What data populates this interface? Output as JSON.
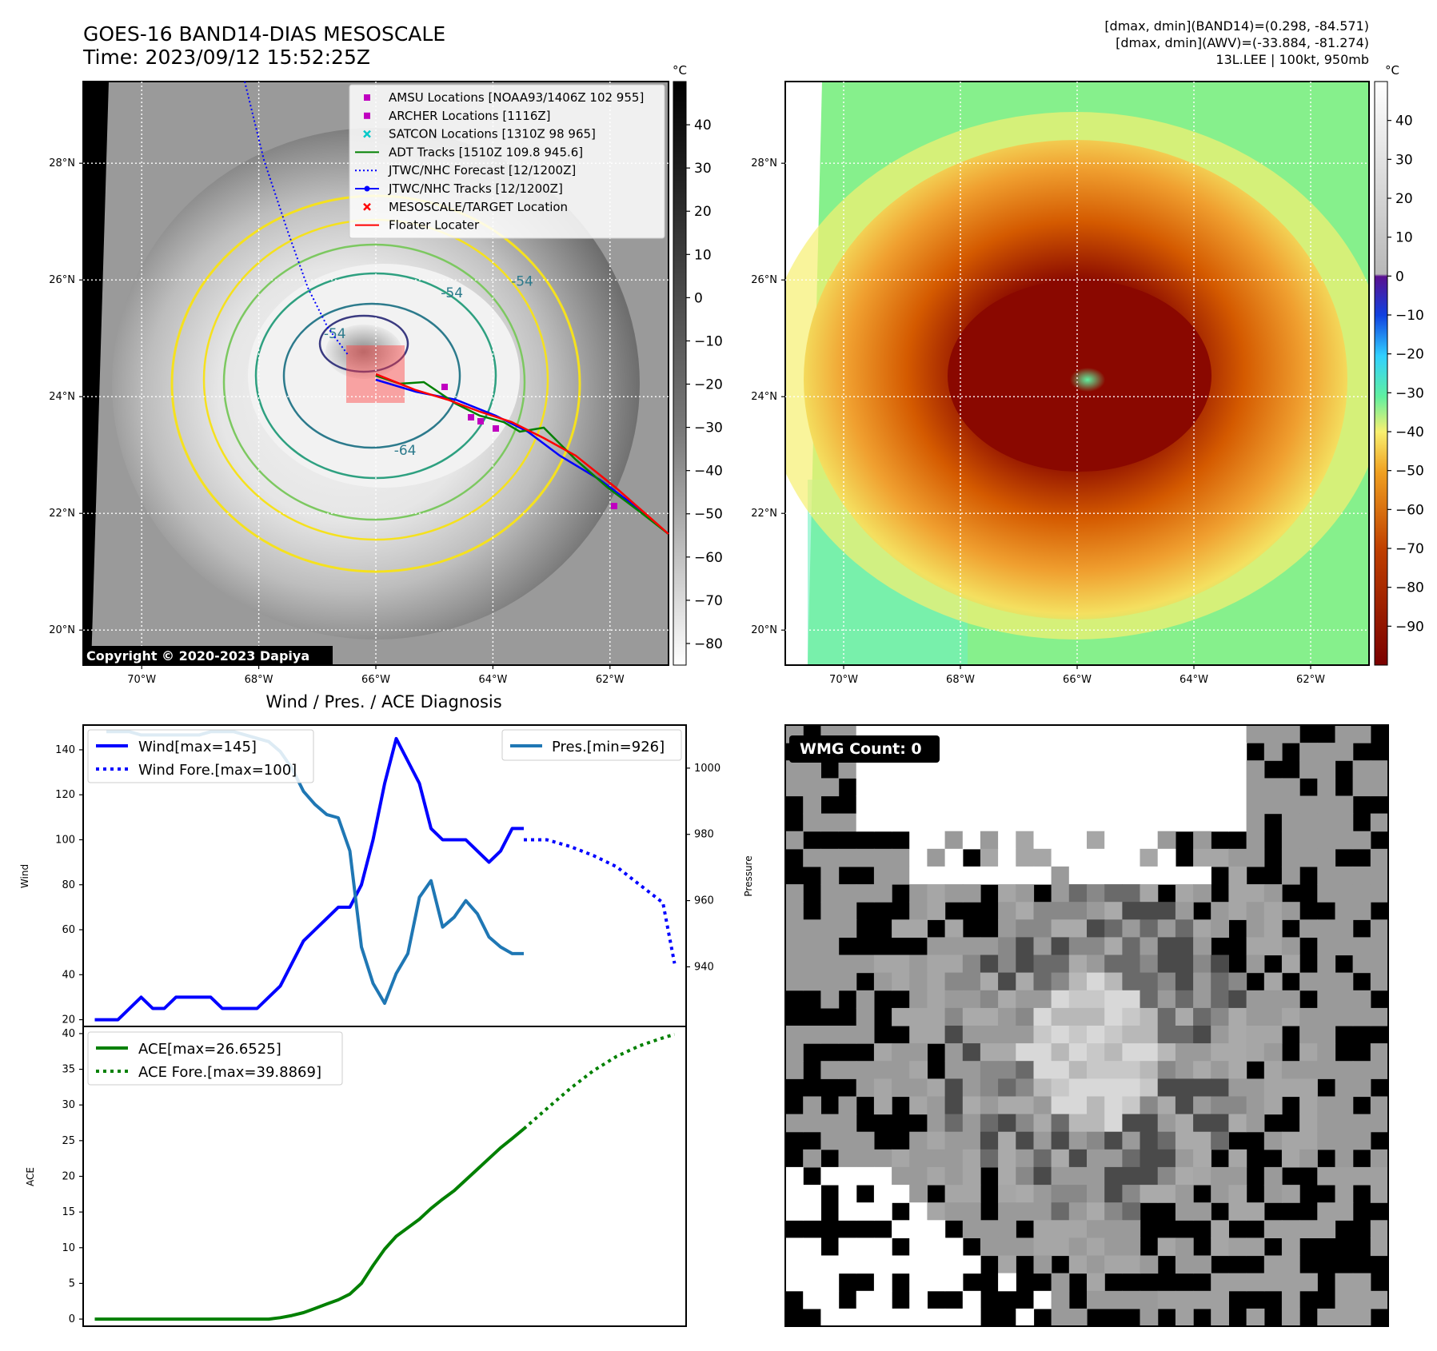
{
  "header": {
    "title_line1": "GOES-16 BAND14-DIAS MESOSCALE",
    "title_line2": "Time: 2023/09/12 15:52:25Z",
    "stats_line1": "[dmax, dmin](BAND14)=(0.298, -84.571)",
    "stats_line2": "[dmax, dmin](AWV)=(-33.884, -81.274)",
    "stats_line3": "13L.LEE | 100kt, 950mb",
    "copyright": "Copyright © 2020-2023 Dapiya"
  },
  "map": {
    "lon_ticks": [
      "70°W",
      "68°W",
      "66°W",
      "64°W",
      "62°W"
    ],
    "lat_ticks": [
      "28°N",
      "26°N",
      "24°N",
      "22°N",
      "20°N"
    ],
    "lon_values": [
      -70,
      -68,
      -66,
      -64,
      -62
    ],
    "lat_values": [
      28,
      26,
      24,
      22,
      20
    ],
    "lon_range": [
      -71,
      -61
    ],
    "lat_range": [
      19.4,
      29.4
    ],
    "grid": true,
    "contour_labels": [
      {
        "text": "-54",
        "lon": -64.7,
        "lat": 25.7
      },
      {
        "text": "-54",
        "lon": -63.5,
        "lat": 25.9
      },
      {
        "text": "-54",
        "lon": -66.7,
        "lat": 25.0
      },
      {
        "text": "-64",
        "lon": -65.5,
        "lat": 23.0
      }
    ]
  },
  "colorbar_gray": {
    "unit": "°C",
    "ticks": [
      "40",
      "30",
      "20",
      "10",
      "0",
      "−10",
      "−20",
      "−30",
      "−40",
      "−50",
      "−60",
      "−70",
      "−80"
    ],
    "values": [
      40,
      30,
      20,
      10,
      0,
      -10,
      -20,
      -30,
      -40,
      -50,
      -60,
      -70,
      -80
    ],
    "range": [
      -85,
      50
    ]
  },
  "colorbar_color": {
    "unit": "°C",
    "ticks": [
      "40",
      "30",
      "20",
      "10",
      "0",
      "−10",
      "−20",
      "−30",
      "−40",
      "−50",
      "−60",
      "−70",
      "−80",
      "−90"
    ],
    "values": [
      40,
      30,
      20,
      10,
      0,
      -10,
      -20,
      -30,
      -40,
      -50,
      -60,
      -70,
      -80,
      -90
    ],
    "range": [
      -100,
      50
    ]
  },
  "legend": [
    {
      "label": "AMSU Locations [NOAA93/1406Z 102 955]",
      "marker": "square",
      "color": "#c000c0"
    },
    {
      "label": "ARCHER Locations [1116Z]",
      "marker": "square",
      "color": "#c000c0"
    },
    {
      "label": "SATCON Locations [1310Z 98 965]",
      "marker": "x",
      "color": "#00c8c8"
    },
    {
      "label": "ADT Tracks [1510Z 109.8 945.6]",
      "marker": "line",
      "color": "#008000"
    },
    {
      "label": "JTWC/NHC Forecast [12/1200Z]",
      "marker": "dotted",
      "color": "#0000ff"
    },
    {
      "label": "JTWC/NHC Tracks [12/1200Z]",
      "marker": "line-dot",
      "color": "#0000ff"
    },
    {
      "label": "MESOSCALE/TARGET Location",
      "marker": "x",
      "color": "#ff0000"
    },
    {
      "label": "Floater Locater",
      "marker": "line",
      "color": "#ff0000"
    }
  ],
  "wmg": {
    "label": "WMG Count: 0"
  },
  "chart_data": [
    {
      "type": "line",
      "title": "Wind / Pres. / ACE Diagnosis",
      "ylabel": "Wind",
      "ylabel_right": "Pressure",
      "ylim": [
        17,
        151
      ],
      "ylim_right": [
        922,
        1013
      ],
      "xlim": [
        0,
        52
      ],
      "yticks": [
        20,
        40,
        60,
        80,
        100,
        120,
        140
      ],
      "yticks_right": [
        940,
        960,
        980,
        1000
      ],
      "legend_left": [
        "Wind[max=145]",
        "Wind Fore.[max=100]"
      ],
      "legend_right": [
        "Pres.[min=926]"
      ],
      "series": [
        {
          "name": "Wind[max=145]",
          "color": "#0000ff",
          "style": "solid",
          "x": [
            1,
            2,
            3,
            4,
            5,
            6,
            7,
            8,
            9,
            10,
            11,
            12,
            13,
            14,
            15,
            16,
            17,
            18,
            19,
            20,
            21,
            22,
            23,
            24,
            25,
            26,
            27,
            28,
            29,
            30,
            31,
            32,
            33,
            34,
            35,
            36,
            37,
            38
          ],
          "values": [
            20,
            20,
            20,
            25,
            30,
            25,
            25,
            30,
            30,
            30,
            30,
            25,
            25,
            25,
            25,
            30,
            35,
            45,
            55,
            60,
            65,
            70,
            70,
            80,
            100,
            125,
            145,
            135,
            125,
            105,
            100,
            100,
            100,
            95,
            90,
            95,
            105,
            105
          ]
        },
        {
          "name": "Wind Fore.[max=100]",
          "color": "#0000ff",
          "style": "dotted",
          "x": [
            38,
            40,
            42,
            44,
            46,
            48,
            50,
            51
          ],
          "values": [
            100,
            100,
            97,
            93,
            88,
            80,
            72,
            45
          ]
        },
        {
          "name": "Pres.[min=926]",
          "color": "#1f77b4",
          "style": "solid",
          "axis": "right",
          "x": [
            2,
            3,
            4,
            5,
            6,
            7,
            8,
            9,
            10,
            11,
            12,
            13,
            14,
            15,
            16,
            17,
            18,
            19,
            20,
            21,
            22,
            23,
            24,
            25,
            26,
            27,
            28,
            29,
            30,
            31,
            32,
            33,
            34,
            35,
            36,
            37,
            38
          ],
          "values": [
            1011,
            1011,
            1011,
            1010,
            1010,
            1010,
            1010,
            1010,
            1010,
            1011,
            1011,
            1011,
            1010,
            1009,
            1008,
            1005,
            1000,
            993,
            989,
            986,
            985,
            975,
            946,
            935,
            929,
            938,
            944,
            961,
            966,
            952,
            955,
            960,
            956,
            949,
            946,
            944,
            944
          ]
        }
      ]
    },
    {
      "type": "line",
      "ylabel": "ACE",
      "ylim": [
        -1,
        41
      ],
      "xlim": [
        0,
        52
      ],
      "yticks": [
        0,
        5,
        10,
        15,
        20,
        25,
        30,
        35,
        40
      ],
      "legend": [
        "ACE[max=26.6525]",
        "ACE Fore.[max=39.8869]"
      ],
      "series": [
        {
          "name": "ACE[max=26.6525]",
          "color": "#008000",
          "style": "solid",
          "x": [
            1,
            6,
            11,
            16,
            17,
            18,
            19,
            20,
            21,
            22,
            23,
            24,
            25,
            26,
            27,
            28,
            29,
            30,
            31,
            32,
            33,
            34,
            35,
            36,
            37,
            38
          ],
          "values": [
            0,
            0,
            0,
            0,
            0.2,
            0.5,
            0.9,
            1.5,
            2.1,
            2.7,
            3.5,
            5,
            7.5,
            9.8,
            11.6,
            12.8,
            14,
            15.5,
            16.8,
            18,
            19.5,
            21,
            22.5,
            24,
            25.3,
            26.65
          ]
        },
        {
          "name": "ACE Fore.[max=39.8869]",
          "color": "#008000",
          "style": "dotted",
          "x": [
            38,
            40,
            42,
            44,
            46,
            48,
            50,
            51
          ],
          "values": [
            26.65,
            29.5,
            32.3,
            34.8,
            36.8,
            38.3,
            39.4,
            39.89
          ]
        }
      ]
    }
  ]
}
